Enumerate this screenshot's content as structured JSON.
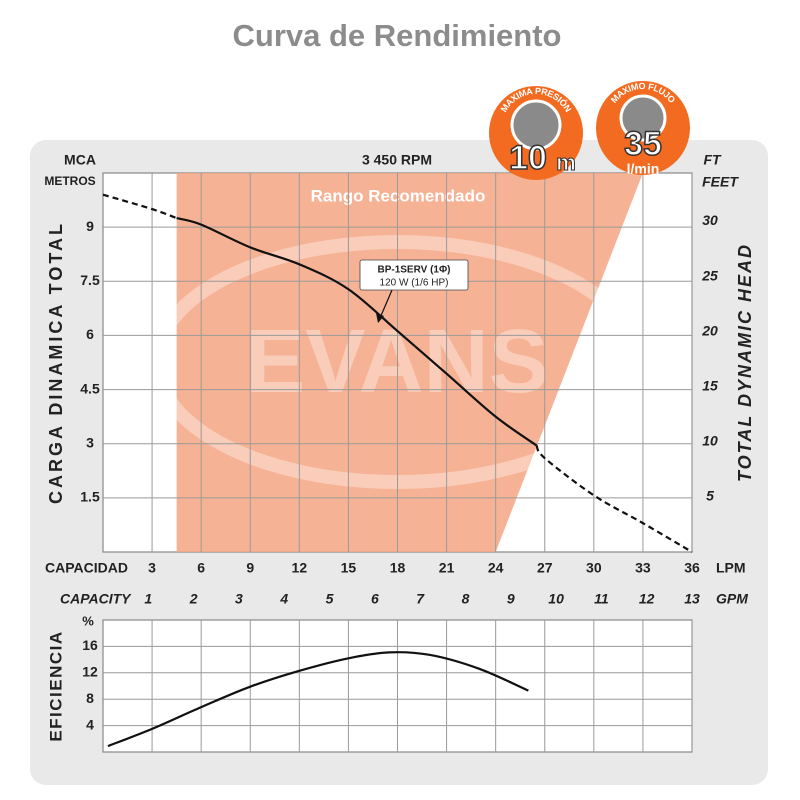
{
  "title": "Curva de Rendimiento",
  "badges": [
    {
      "caption": "MAXIMA PRESIÓN",
      "value": "10",
      "unit": "m"
    },
    {
      "caption": "MAXIMO FLUJO",
      "value": "35",
      "unit": "l/min"
    }
  ],
  "chart_data": [
    {
      "type": "line",
      "rpm": "3 450 RPM",
      "y_label_top": "MCA",
      "y_unit": "METROS",
      "y2_label_top": "FT",
      "y2_unit": "FEET",
      "ylabel": "CARGA DINAMICA TOTAL",
      "y2label": "TOTAL DYNAMIC HEAD",
      "xlabel": "CAPACIDAD",
      "x_unit": "LPM",
      "x2label": "CAPACITY",
      "x2_unit": "GPM",
      "watermark": "EVANS",
      "xlim": [
        0,
        36
      ],
      "xticks": [
        3,
        6,
        9,
        12,
        15,
        18,
        21,
        24,
        27,
        30,
        33,
        36
      ],
      "x2lim": [
        0,
        13
      ],
      "x2ticks": [
        1,
        2,
        3,
        4,
        5,
        6,
        7,
        8,
        9,
        10,
        11,
        12,
        13
      ],
      "ylim": [
        0,
        10.5
      ],
      "yticks": [
        1.5,
        3,
        4.5,
        6,
        7.5,
        9
      ],
      "y2lim": [
        0,
        34.4
      ],
      "y2ticks": [
        5,
        10,
        15,
        20,
        25,
        30
      ],
      "grid": true,
      "range": {
        "label": "Rango Recomendado",
        "x": [
          4.5,
          4.5,
          33,
          24
        ],
        "y": [
          0,
          10.5,
          10.5,
          0
        ],
        "color": "#f4a582"
      },
      "annotation": [
        "BP-1SERV (1Φ)",
        "120 W (1/6 HP)"
      ],
      "color": "#111111",
      "x": [
        0,
        3,
        4.5,
        6,
        9,
        12,
        15,
        18,
        21,
        24,
        26.5,
        27,
        30,
        33,
        36
      ],
      "values": [
        null,
        null,
        9.25,
        9.07,
        8.44,
        7.97,
        7.28,
        6.12,
        4.94,
        3.75,
        2.95,
        null,
        null,
        null,
        null
      ],
      "dashed_values": [
        9.9,
        9.5,
        9.25,
        null,
        null,
        null,
        null,
        null,
        null,
        null,
        2.95,
        2.6,
        1.57,
        0.8,
        0
      ]
    },
    {
      "type": "line",
      "ylabel": "EFICIENCIA",
      "y_unit": "%",
      "xlim": [
        0,
        36
      ],
      "ylim": [
        0,
        20
      ],
      "yticks": [
        4,
        8,
        12,
        16
      ],
      "grid": true,
      "color": "#111111",
      "x": [
        0.3,
        3,
        6,
        9,
        12,
        15,
        17.5,
        20,
        23,
        26
      ],
      "values": [
        0.9,
        3.5,
        6.8,
        9.9,
        12.3,
        14.2,
        15.1,
        14.7,
        12.6,
        9.3
      ]
    }
  ]
}
